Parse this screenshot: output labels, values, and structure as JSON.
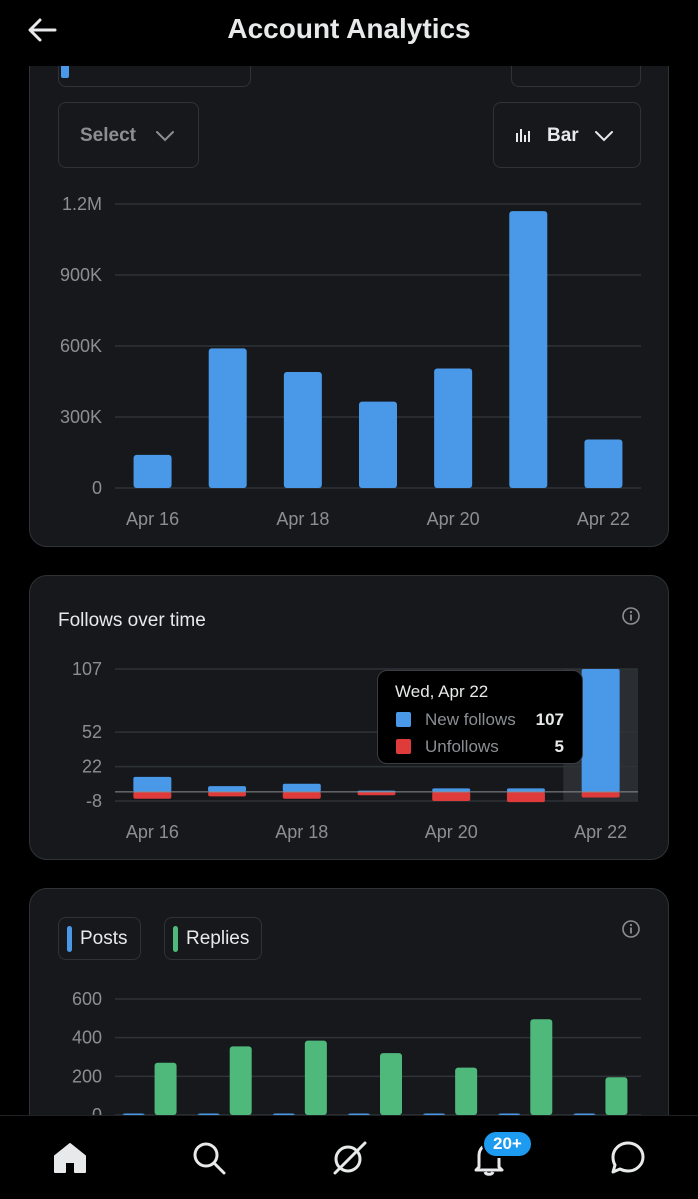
{
  "header": {
    "title": "Account Analytics"
  },
  "controls": {
    "select_label": "Select",
    "chart_type_label": "Bar"
  },
  "impressions": {
    "chart_data": {
      "type": "bar",
      "categories": [
        "Apr 16",
        "Apr 17",
        "Apr 18",
        "Apr 19",
        "Apr 20",
        "Apr 21",
        "Apr 22"
      ],
      "x_tick_labels": [
        "Apr 16",
        "Apr 18",
        "Apr 20",
        "Apr 22"
      ],
      "y_tick_labels": [
        "1.2M",
        "900K",
        "600K",
        "300K",
        "0"
      ],
      "y_ticks": [
        1200000,
        900000,
        600000,
        300000,
        0
      ],
      "ylim": [
        0,
        1200000
      ],
      "values": [
        140000,
        590000,
        490000,
        365000,
        505000,
        1170000,
        205000
      ],
      "color": "#4a99e9",
      "grid": true
    }
  },
  "follows": {
    "title": "Follows over time",
    "chart_data": {
      "type": "bar",
      "categories": [
        "Apr 16",
        "Apr 17",
        "Apr 18",
        "Apr 19",
        "Apr 20",
        "Apr 21",
        "Apr 22"
      ],
      "x_tick_labels": [
        "Apr 16",
        "Apr 18",
        "Apr 20",
        "Apr 22"
      ],
      "y_tick_labels": [
        "107",
        "52",
        "22",
        "-8"
      ],
      "y_ticks": [
        107,
        52,
        22,
        -8
      ],
      "ylim": [
        -8,
        107
      ],
      "series": [
        {
          "name": "New follows",
          "color": "#4a99e9",
          "values": [
            13,
            5,
            7,
            1,
            3,
            3,
            107
          ]
        },
        {
          "name": "Unfollows",
          "color": "#e03b3b",
          "values": [
            -6,
            -4,
            -6,
            -3,
            -8,
            -9,
            -5
          ]
        }
      ],
      "grid": true
    },
    "tooltip": {
      "date": "Wed, Apr 22",
      "new_follows_label": "New follows",
      "new_follows_value": "107",
      "unfollows_label": "Unfollows",
      "unfollows_value": "5"
    }
  },
  "posts": {
    "legend": {
      "posts": "Posts",
      "replies": "Replies"
    },
    "chart_data": {
      "type": "bar",
      "categories": [
        "Apr 16",
        "Apr 17",
        "Apr 18",
        "Apr 19",
        "Apr 20",
        "Apr 21",
        "Apr 22"
      ],
      "y_tick_labels": [
        "600",
        "400",
        "200",
        "0"
      ],
      "y_ticks": [
        600,
        400,
        200,
        0
      ],
      "ylim": [
        0,
        600
      ],
      "series": [
        {
          "name": "Posts",
          "color": "#4a99e9",
          "values": [
            3,
            2,
            4,
            1,
            1,
            1,
            2
          ]
        },
        {
          "name": "Replies",
          "color": "#4fb97c",
          "values": [
            270,
            355,
            385,
            320,
            245,
            495,
            195
          ]
        }
      ],
      "grid": true
    }
  },
  "notifications": {
    "badge": "20+"
  }
}
